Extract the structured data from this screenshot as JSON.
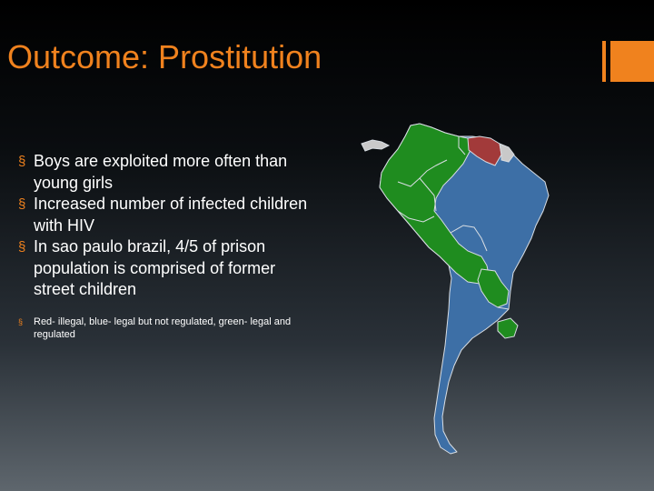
{
  "slide": {
    "title": "Outcome: Prostitution",
    "bullets": [
      "Boys are exploited more often than young girls",
      "Increased number of infected children with HIV",
      "In sao paulo brazil, 4/5 of prison population is comprised of former street children"
    ],
    "note": "Red- illegal, blue- legal but not regulated, green- legal and regulated",
    "bullet_marker": "§",
    "accent_color": "#f0821e"
  },
  "map": {
    "colors": {
      "illegal": "#a23a3a",
      "legal_not_regulated": "#3d6fa6",
      "legal_and_regulated": "#1f8c1f",
      "other": "#c9c9c9",
      "border": "#d8dde3"
    }
  }
}
